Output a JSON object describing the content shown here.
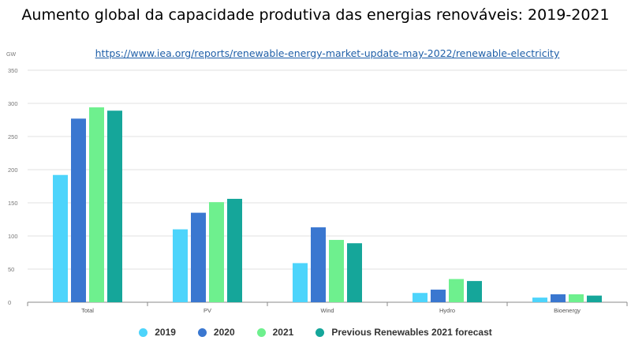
{
  "title": "Aumento global da capacidade produtiva das energias renováveis: 2019-2021",
  "source_link": "https://www.iea.org/reports/renewable-energy-market-update-may-2022/renewable-electricity",
  "chart_data": {
    "type": "bar",
    "ylabel": "GW",
    "ylim": [
      0,
      350
    ],
    "yticks": [
      0,
      50,
      100,
      150,
      200,
      250,
      300,
      350
    ],
    "grid": true,
    "legend_position": "bottom",
    "categories": [
      "Total",
      "PV",
      "Wind",
      "Hydro",
      "Bioenergy"
    ],
    "series": [
      {
        "name": "2019",
        "color": "#4dd4fb",
        "values": [
          192,
          110,
          59,
          14,
          7
        ]
      },
      {
        "name": "2020",
        "color": "#3a77d0",
        "values": [
          277,
          135,
          113,
          19,
          12
        ]
      },
      {
        "name": "2021",
        "color": "#6ef08e",
        "values": [
          294,
          151,
          94,
          35,
          12
        ]
      },
      {
        "name": "Previous Renewables 2021 forecast",
        "color": "#15a69a",
        "values": [
          289,
          156,
          89,
          32,
          10
        ]
      }
    ]
  }
}
